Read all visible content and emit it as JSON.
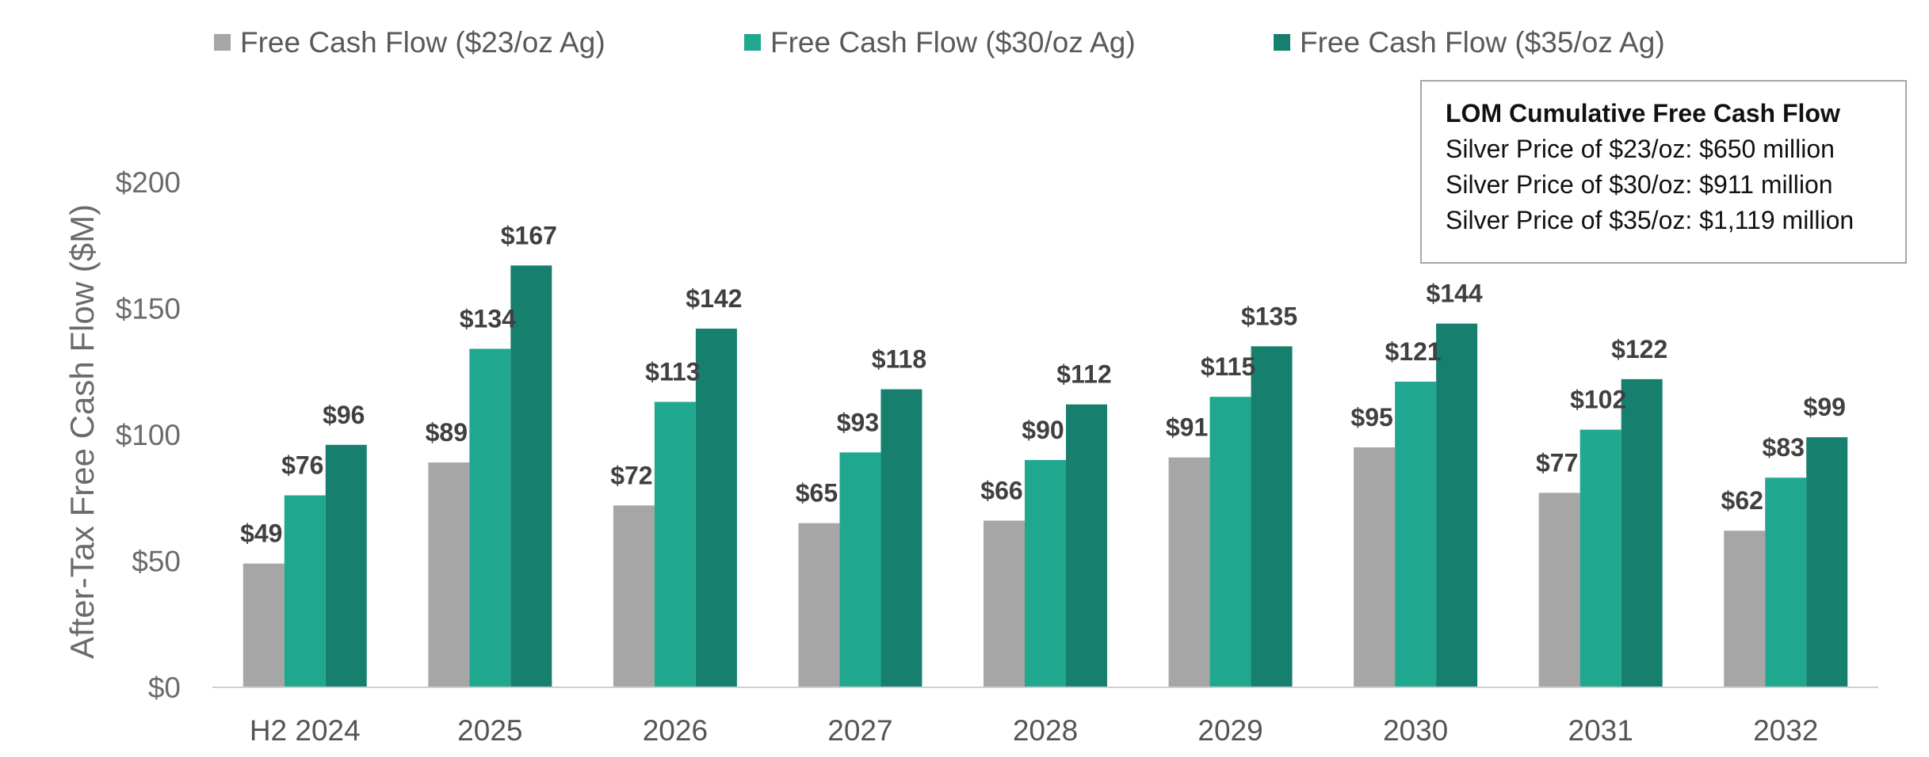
{
  "chart_data": {
    "type": "bar",
    "title": "",
    "xlabel": "",
    "ylabel": "After-Tax Free Cash Flow ($M)",
    "ylim": [
      0,
      200
    ],
    "yticks": [
      0,
      50,
      100,
      150,
      200
    ],
    "ytick_labels": [
      "$0",
      "$50",
      "$100",
      "$150",
      "$200"
    ],
    "legend_position": "top",
    "categories": [
      "H2 2024",
      "2025",
      "2026",
      "2027",
      "2028",
      "2029",
      "2030",
      "2031",
      "2032"
    ],
    "series": [
      {
        "name": "Free Cash Flow ($23/oz Ag)",
        "color": "#a6a6a6",
        "values": [
          49,
          89,
          72,
          65,
          66,
          91,
          95,
          77,
          62
        ],
        "labels": [
          "$49",
          "$89",
          "$72",
          "$65",
          "$66",
          "$91",
          "$95",
          "$77",
          "$62"
        ]
      },
      {
        "name": "Free Cash Flow ($30/oz Ag)",
        "color": "#20a78f",
        "values": [
          76,
          134,
          113,
          93,
          90,
          115,
          121,
          102,
          83
        ],
        "labels": [
          "$76",
          "$134",
          "$113",
          "$93",
          "$90",
          "$115",
          "$121",
          "$102",
          "$83"
        ]
      },
      {
        "name": "Free Cash Flow ($35/oz Ag)",
        "color": "#167f6e",
        "values": [
          96,
          167,
          142,
          118,
          112,
          135,
          144,
          122,
          99
        ],
        "labels": [
          "$96",
          "$167",
          "$142",
          "$118",
          "$112",
          "$135",
          "$144",
          "$122",
          "$99"
        ]
      }
    ],
    "annotation": {
      "title": "LOM Cumulative Free Cash Flow",
      "lines": [
        "Silver Price of $23/oz: $650 million",
        "Silver Price of $30/oz: $911 million",
        "Silver Price of $35/oz: $1,119 million"
      ]
    }
  }
}
